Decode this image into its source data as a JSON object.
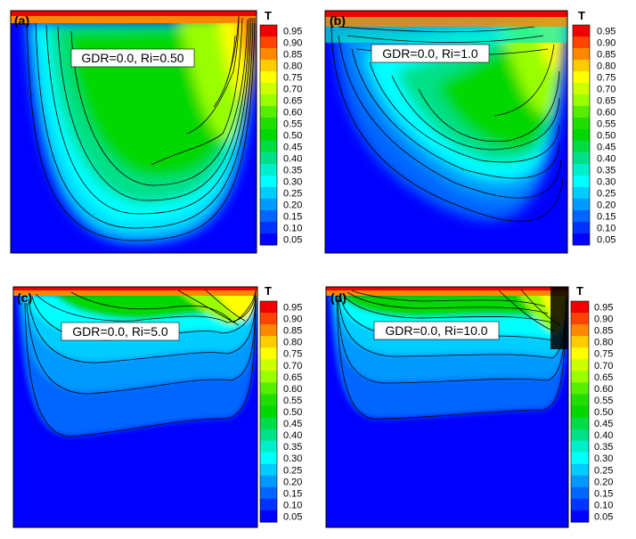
{
  "chart_data": [
    {
      "type": "heatmap",
      "panel_label": "(a)",
      "annotation": "GDR=0.0, Ri=0.50",
      "colorbar_title": "T",
      "colorbar_ticks": [
        "0.95",
        "0.90",
        "0.85",
        "0.80",
        "0.75",
        "0.70",
        "0.65",
        "0.60",
        "0.55",
        "0.50",
        "0.45",
        "0.40",
        "0.35",
        "0.30",
        "0.25",
        "0.20",
        "0.15",
        "0.10",
        "0.05"
      ],
      "value_range": [
        0,
        1
      ]
    },
    {
      "type": "heatmap",
      "panel_label": "(b)",
      "annotation": "GDR=0.0, Ri=1.0",
      "colorbar_title": "T",
      "colorbar_ticks": [
        "0.95",
        "0.90",
        "0.85",
        "0.80",
        "0.75",
        "0.70",
        "0.65",
        "0.60",
        "0.55",
        "0.50",
        "0.45",
        "0.40",
        "0.35",
        "0.30",
        "0.25",
        "0.20",
        "0.15",
        "0.10",
        "0.05"
      ],
      "value_range": [
        0,
        1
      ]
    },
    {
      "type": "heatmap",
      "panel_label": "(c)",
      "annotation": "GDR=0.0, Ri=5.0",
      "colorbar_title": "T",
      "colorbar_ticks": [
        "0.95",
        "0.90",
        "0.85",
        "0.80",
        "0.75",
        "0.70",
        "0.65",
        "0.60",
        "0.55",
        "0.50",
        "0.45",
        "0.40",
        "0.35",
        "0.30",
        "0.25",
        "0.20",
        "0.15",
        "0.10",
        "0.05"
      ],
      "value_range": [
        0,
        1
      ]
    },
    {
      "type": "heatmap",
      "panel_label": "(d)",
      "annotation": "GDR=0.0, Ri=10.0",
      "colorbar_title": "T",
      "colorbar_ticks": [
        "0.95",
        "0.90",
        "0.85",
        "0.80",
        "0.75",
        "0.70",
        "0.65",
        "0.60",
        "0.55",
        "0.50",
        "0.45",
        "0.40",
        "0.35",
        "0.30",
        "0.25",
        "0.20",
        "0.15",
        "0.10",
        "0.05"
      ],
      "value_range": [
        0,
        1
      ]
    }
  ],
  "colors": {
    "0.95": "#f00000",
    "0.90": "#ff4400",
    "0.85": "#ff8800",
    "0.80": "#ffcc00",
    "0.75": "#ffff00",
    "0.70": "#ccff00",
    "0.65": "#99ff00",
    "0.60": "#55ee00",
    "0.55": "#22dd00",
    "0.50": "#00d800",
    "0.45": "#00dd44",
    "0.40": "#00e088",
    "0.35": "#00eecc",
    "0.30": "#00ffff",
    "0.25": "#00ccff",
    "0.20": "#0099ff",
    "0.15": "#0066ff",
    "0.10": "#0033ff",
    "0.05": "#0000ff"
  }
}
